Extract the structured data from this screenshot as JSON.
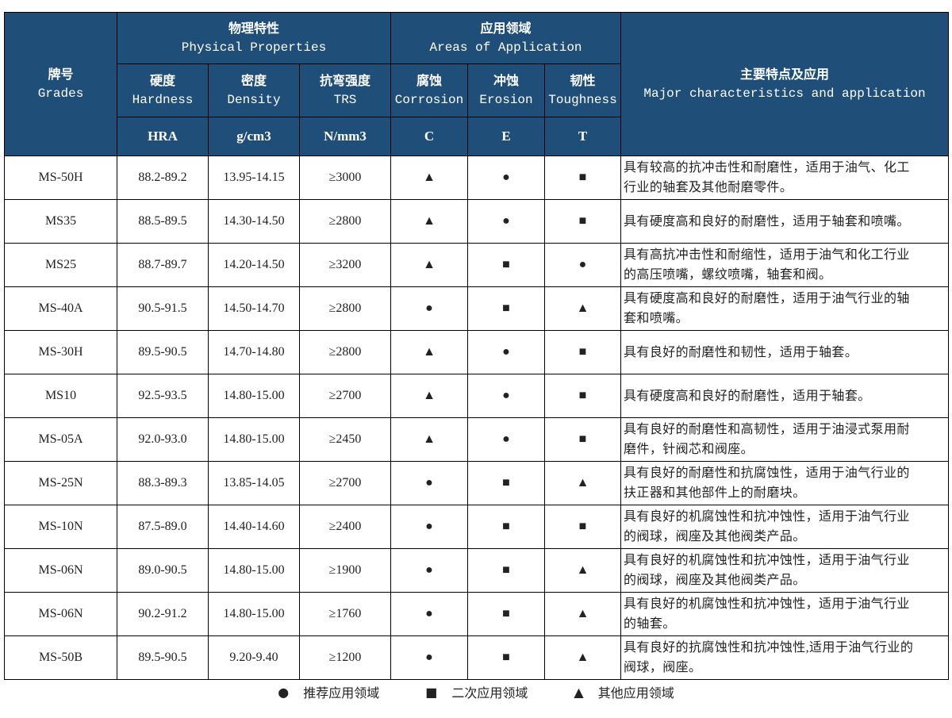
{
  "header": {
    "grades": {
      "zh": "牌号",
      "en": "Grades"
    },
    "physical": {
      "zh": "物理特性",
      "en": "Physical Properties"
    },
    "areas": {
      "zh": "应用领域",
      "en": "Areas of Application"
    },
    "major": {
      "zh": "主要特点及应用",
      "en": "Major characteristics and application"
    },
    "hardness": {
      "zh": "硬度",
      "en": "Hardness",
      "unit": "HRA"
    },
    "density": {
      "zh": "密度",
      "en": "Density",
      "unit": "g/cm3"
    },
    "trs": {
      "zh": "抗弯强度",
      "en": "TRS",
      "unit": "N/mm3"
    },
    "corrosion": {
      "zh": "腐蚀",
      "en": "Corrosion",
      "unit": "C"
    },
    "erosion": {
      "zh": "冲蚀",
      "en": "Erosion",
      "unit": "E"
    },
    "toughness": {
      "zh": "韧性",
      "en": "Toughness",
      "unit": "T"
    }
  },
  "rows": [
    {
      "grade": "MS-50H",
      "hra": "88.2-89.2",
      "density": "13.95-14.15",
      "trs": "≥3000",
      "c": "▲",
      "e": "●",
      "t": "■",
      "desc": "具有较高的抗冲击性和耐磨性，适用于油气、化工\n行业的轴套及其他耐磨零件。"
    },
    {
      "grade": "MS35",
      "hra": "88.5-89.5",
      "density": "14.30-14.50",
      "trs": "≥2800",
      "c": "▲",
      "e": "●",
      "t": "■",
      "desc": "具有硬度高和良好的耐磨性，适用于轴套和喷嘴。"
    },
    {
      "grade": "MS25",
      "hra": "88.7-89.7",
      "density": "14.20-14.50",
      "trs": "≥3200",
      "c": "▲",
      "e": "■",
      "t": "●",
      "desc": "具有高抗冲击性和耐缩性，适用于油气和化工行业\n的高压喷嘴，螺纹喷嘴，轴套和阀。"
    },
    {
      "grade": "MS-40A",
      "hra": "90.5-91.5",
      "density": "14.50-14.70",
      "trs": "≥2800",
      "c": "●",
      "e": "■",
      "t": "▲",
      "desc": "具有硬度高和良好的耐磨性，适用于油气行业的轴\n套和喷嘴。"
    },
    {
      "grade": "MS-30H",
      "hra": "89.5-90.5",
      "density": "14.70-14.80",
      "trs": "≥2800",
      "c": "▲",
      "e": "●",
      "t": "■",
      "desc": "具有良好的耐磨性和韧性，适用于轴套。"
    },
    {
      "grade": "MS10",
      "hra": "92.5-93.5",
      "density": "14.80-15.00",
      "trs": "≥2700",
      "c": "▲",
      "e": "●",
      "t": "■",
      "desc": "具有硬度高和良好的耐磨性，适用于轴套。"
    },
    {
      "grade": "MS-05A",
      "hra": "92.0-93.0",
      "density": "14.80-15.00",
      "trs": "≥2450",
      "c": "▲",
      "e": "●",
      "t": "■",
      "desc": "具有良好的耐磨性和高韧性，适用于油浸式泵用耐\n磨件，针阀芯和阀座。"
    },
    {
      "grade": "MS-25N",
      "hra": "88.3-89.3",
      "density": "13.85-14.05",
      "trs": "≥2700",
      "c": "●",
      "e": "■",
      "t": "▲",
      "desc": "具有良好的耐磨性和抗腐蚀性，适用于油气行业的\n扶正器和其他部件上的耐磨块。"
    },
    {
      "grade": "MS-10N",
      "hra": "87.5-89.0",
      "density": "14.40-14.60",
      "trs": "≥2400",
      "c": "●",
      "e": "■",
      "t": "■",
      "desc": "具有良好的机腐蚀性和抗冲蚀性，适用于油气行业\n的阀球，阀座及其他阀类产品。"
    },
    {
      "grade": "MS-06N",
      "hra": "89.0-90.5",
      "density": "14.80-15.00",
      "trs": "≥1900",
      "c": "●",
      "e": "■",
      "t": "▲",
      "desc": "具有良好的机腐蚀性和抗冲蚀性，适用于油气行业\n的阀球，阀座及其他阀类产品。"
    },
    {
      "grade": "MS-06N",
      "hra": "90.2-91.2",
      "density": "14.80-15.00",
      "trs": "≥1760",
      "c": "●",
      "e": "■",
      "t": "▲",
      "desc": "具有良好的机腐蚀性和抗冲蚀性，适用于油气行业\n的轴套。"
    },
    {
      "grade": "MS-50B",
      "hra": "89.5-90.5",
      "density": "9.20-9.40",
      "trs": "≥1200",
      "c": "●",
      "e": "■",
      "t": "▲",
      "desc": "具有良好的抗腐蚀性和抗冲蚀性,适用于油气行业的\n阀球，阀座。"
    }
  ],
  "legend": [
    {
      "symbol": "●",
      "icon": "circle-icon",
      "label": "推荐应用领域"
    },
    {
      "symbol": "■",
      "icon": "square-icon",
      "label": "二次应用领域"
    },
    {
      "symbol": "▲",
      "icon": "triangle-icon",
      "label": "其他应用领域"
    }
  ],
  "colors": {
    "header_bg": "#1f4e79",
    "header_text": "#ffffff"
  }
}
